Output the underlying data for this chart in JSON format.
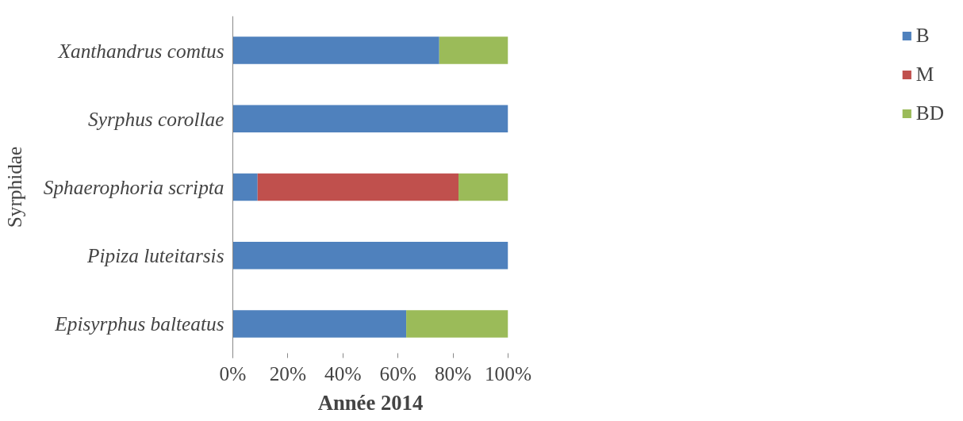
{
  "chart_data": {
    "type": "bar",
    "orientation": "horizontal",
    "stacked": true,
    "ylabel": "Syrphidae",
    "xlabel": "Année 2014",
    "categories": [
      "Xanthandrus comtus",
      "Syrphus corollae",
      "Sphaerophoria scripta",
      "Pipiza luteitarsis",
      "Episyrphus balteatus"
    ],
    "series": [
      {
        "name": "B",
        "color": "#4f81bd",
        "values": [
          75,
          100,
          9,
          100,
          63
        ]
      },
      {
        "name": "M",
        "color": "#c0504d",
        "values": [
          0,
          0,
          73,
          0,
          0
        ]
      },
      {
        "name": "BD",
        "color": "#9bbb59",
        "values": [
          25,
          0,
          18,
          0,
          37
        ]
      }
    ],
    "xlim": [
      0,
      100
    ],
    "xticks": [
      {
        "value": 0,
        "label": "0%"
      },
      {
        "value": 20,
        "label": "20%"
      },
      {
        "value": 40,
        "label": "40%"
      },
      {
        "value": 60,
        "label": "60%"
      },
      {
        "value": 80,
        "label": "80%"
      },
      {
        "value": 100,
        "label": "100%"
      }
    ],
    "grid": false,
    "legend": "right"
  }
}
